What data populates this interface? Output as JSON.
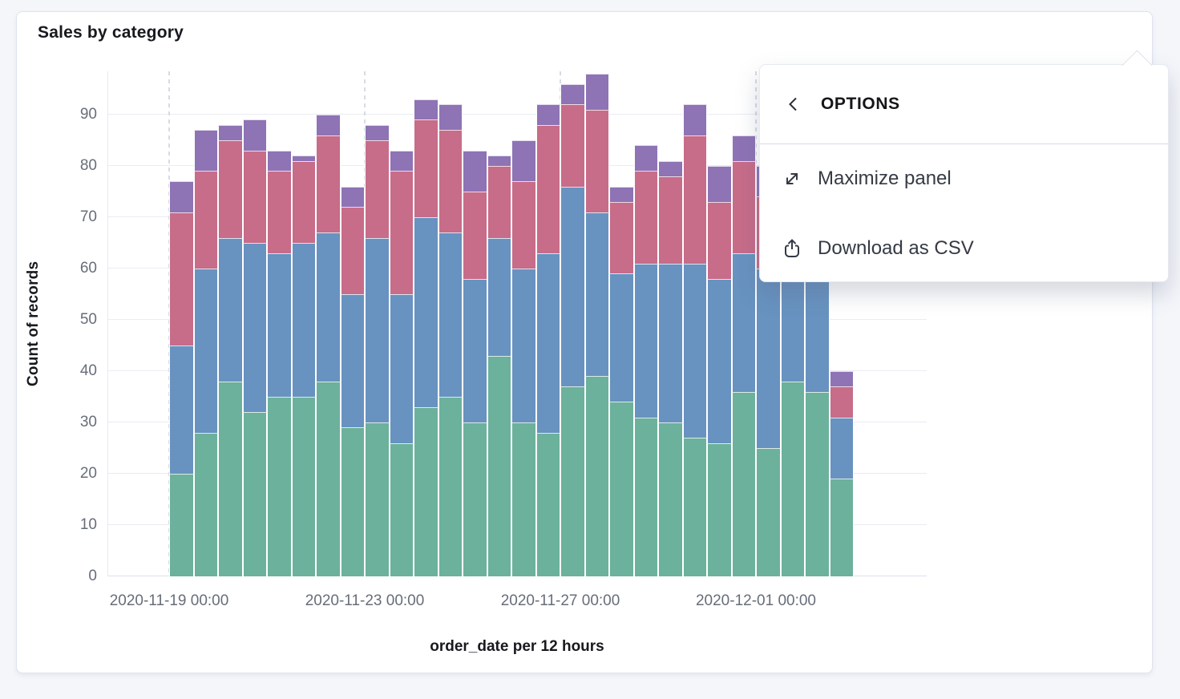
{
  "panel": {
    "title": "Sales by category"
  },
  "chart_data": {
    "type": "bar",
    "stacked": true,
    "title": "Sales by category",
    "xlabel": "order_date per 12 hours",
    "ylabel": "Count of records",
    "x": [
      "2020-11-19 00:00",
      "2020-11-19 12:00",
      "2020-11-20 00:00",
      "2020-11-20 12:00",
      "2020-11-21 00:00",
      "2020-11-21 12:00",
      "2020-11-22 00:00",
      "2020-11-22 12:00",
      "2020-11-23 00:00",
      "2020-11-23 12:00",
      "2020-11-24 00:00",
      "2020-11-24 12:00",
      "2020-11-25 00:00",
      "2020-11-25 12:00",
      "2020-11-26 00:00",
      "2020-11-26 12:00",
      "2020-11-27 00:00",
      "2020-11-27 12:00",
      "2020-11-28 00:00",
      "2020-11-28 12:00",
      "2020-11-29 00:00",
      "2020-11-29 12:00",
      "2020-11-30 00:00",
      "2020-11-30 12:00",
      "2020-12-01 00:00",
      "2020-12-01 12:00",
      "2020-12-02 00:00",
      "2020-12-02 12:00"
    ],
    "x_tick_labels": [
      "2020-11-19 00:00",
      "2020-11-23 00:00",
      "2020-11-27 00:00",
      "2020-12-01 00:00"
    ],
    "x_tick_every": 8,
    "y_ticks": [
      0,
      10,
      20,
      30,
      40,
      50,
      60,
      70,
      80,
      90
    ],
    "ylim": [
      0,
      98.4
    ],
    "grid": true,
    "legend": "none",
    "series": [
      {
        "name": "green",
        "color": "#6CB19B",
        "values": [
          20,
          28,
          38,
          32,
          35,
          35,
          38,
          29,
          30,
          26,
          33,
          35,
          30,
          43,
          30,
          28,
          37,
          39,
          34,
          31,
          30,
          27,
          26,
          36,
          25,
          38,
          36,
          19
        ]
      },
      {
        "name": "blue",
        "color": "#6892C0",
        "values": [
          25,
          32,
          28,
          33,
          28,
          30,
          29,
          26,
          36,
          29,
          37,
          32,
          28,
          23,
          30,
          35,
          39,
          32,
          25,
          30,
          31,
          34,
          32,
          27,
          35,
          26,
          26,
          12
        ]
      },
      {
        "name": "red",
        "color": "#C76C89",
        "values": [
          26,
          19,
          19,
          18,
          16,
          16,
          19,
          17,
          19,
          24,
          19,
          20,
          17,
          14,
          17,
          25,
          16,
          20,
          14,
          18,
          17,
          25,
          15,
          18,
          14,
          14,
          13,
          6
        ]
      },
      {
        "name": "purple",
        "color": "#8E73B5",
        "values": [
          6,
          8,
          3,
          6,
          4,
          1,
          4,
          4,
          3,
          4,
          4,
          5,
          8,
          2,
          8,
          4,
          4,
          7,
          3,
          5,
          3,
          6,
          7,
          5,
          6,
          4,
          4,
          3
        ]
      }
    ]
  },
  "context_menu": {
    "header": "OPTIONS",
    "items": [
      {
        "label": "Maximize panel"
      },
      {
        "label": "Download as CSV"
      }
    ]
  }
}
